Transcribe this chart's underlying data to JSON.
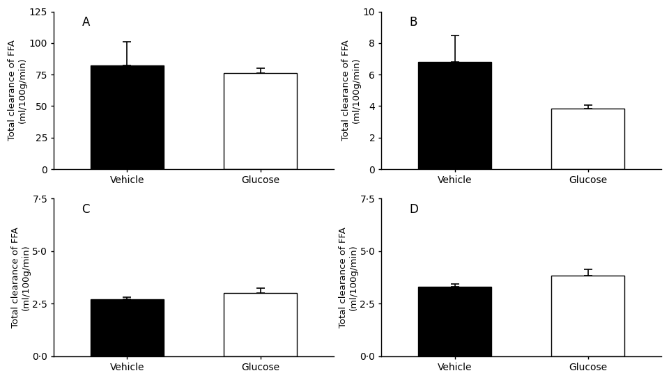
{
  "panels": [
    {
      "label": "A",
      "vehicle_mean": 82,
      "vehicle_err": 19,
      "glucose_mean": 76,
      "glucose_err": 4,
      "ylim": [
        0,
        125
      ],
      "yticks": [
        0,
        25,
        50,
        75,
        100,
        125
      ],
      "ytick_labels": [
        "0",
        "25",
        "50",
        "75",
        "100",
        "125"
      ]
    },
    {
      "label": "B",
      "vehicle_mean": 6.8,
      "vehicle_err": 1.7,
      "glucose_mean": 3.85,
      "glucose_err": 0.2,
      "ylim": [
        0,
        10
      ],
      "yticks": [
        0,
        2,
        4,
        6,
        8,
        10
      ],
      "ytick_labels": [
        "0",
        "2",
        "4",
        "6",
        "8",
        "10"
      ]
    },
    {
      "label": "C",
      "vehicle_mean": 2.7,
      "vehicle_err": 0.1,
      "glucose_mean": 3.0,
      "glucose_err": 0.25,
      "ylim": [
        0,
        7.5
      ],
      "yticks": [
        0.0,
        2.5,
        5.0,
        7.5
      ],
      "ytick_labels": [
        "0·0",
        "2·5",
        "5·0",
        "7·5"
      ]
    },
    {
      "label": "D",
      "vehicle_mean": 3.3,
      "vehicle_err": 0.15,
      "glucose_mean": 3.85,
      "glucose_err": 0.3,
      "ylim": [
        0,
        7.5
      ],
      "yticks": [
        0.0,
        2.5,
        5.0,
        7.5
      ],
      "ytick_labels": [
        "0·0",
        "2·5",
        "5·0",
        "7·5"
      ]
    }
  ],
  "xlabel_vehicle": "Vehicle",
  "xlabel_glucose": "Glucose",
  "ylabel": "Total clearance of FFA\n(ml/100g/min)",
  "bar_width": 0.55,
  "vehicle_color": "#000000",
  "glucose_color": "#ffffff",
  "edge_color": "#000000",
  "font_size": 10,
  "label_font_size": 12,
  "error_capsize": 4,
  "error_linewidth": 1.2
}
